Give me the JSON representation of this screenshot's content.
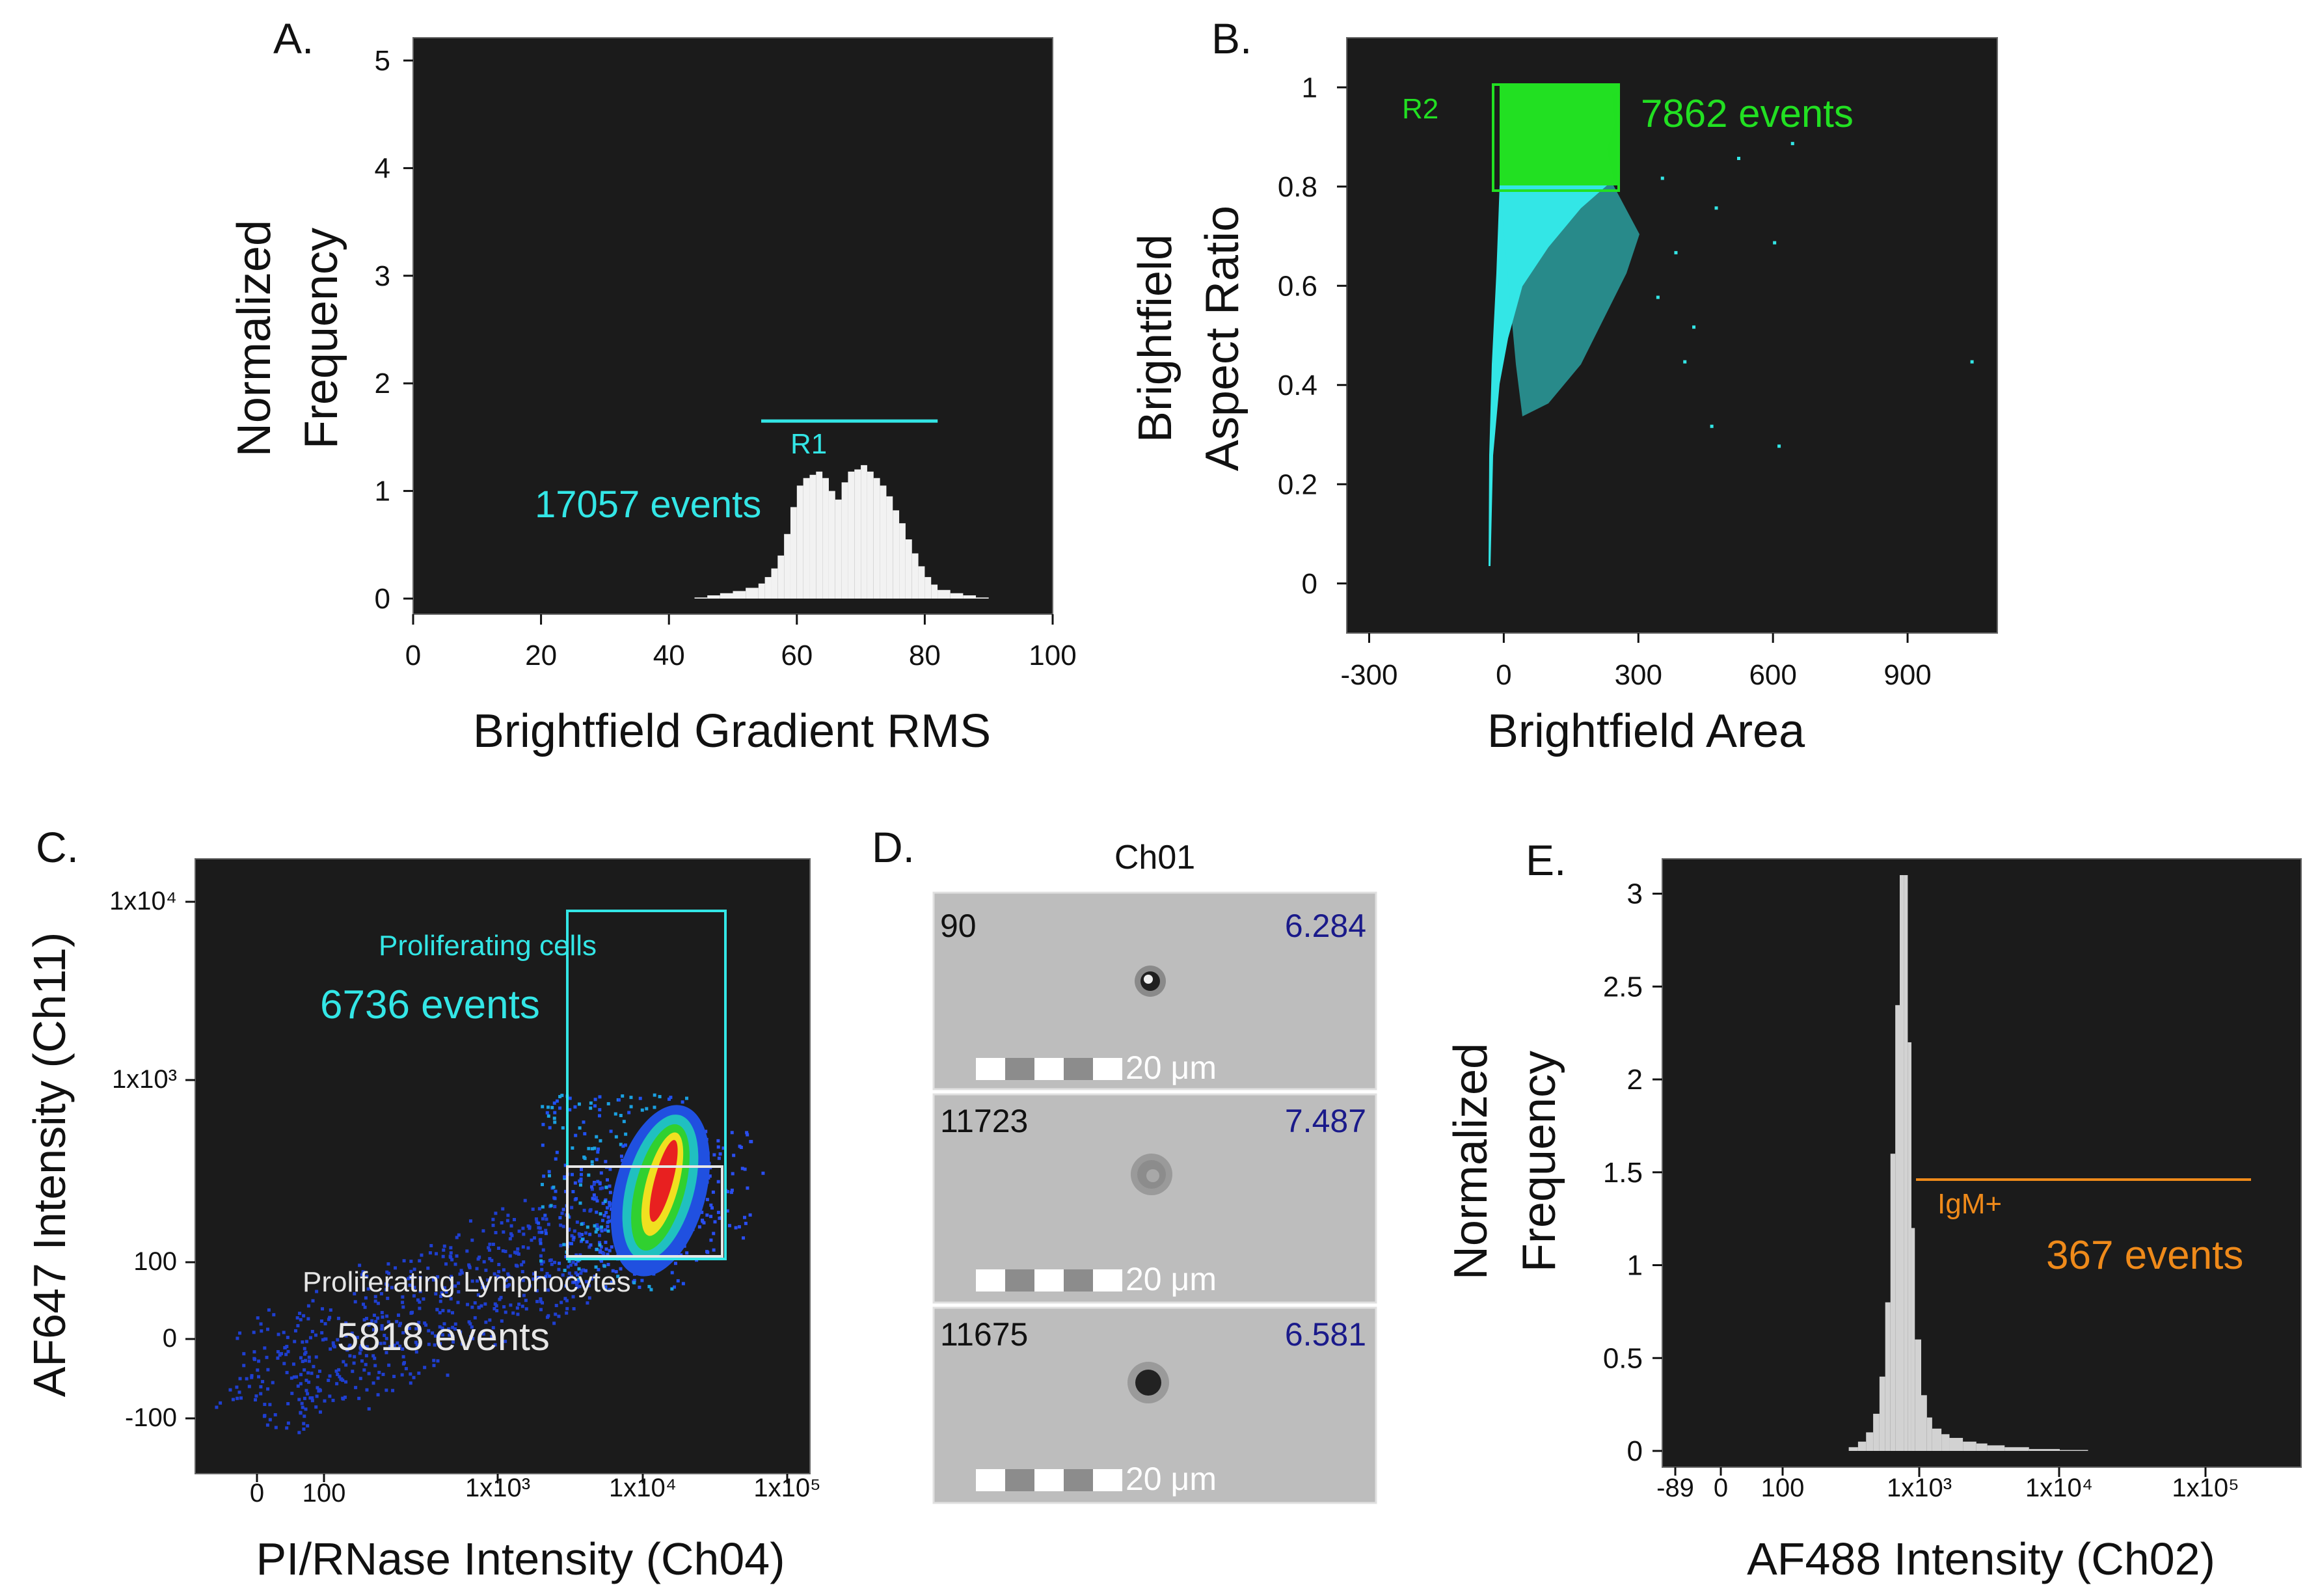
{
  "colors": {
    "background": "#ffffff",
    "plot_bg": "#1b1b1b",
    "cyan": "#33e6e6",
    "green": "#22e022",
    "white": "#f2f2f2",
    "grey_hist": "#d2d2d2",
    "orange": "#ef8a1a",
    "navy": "#1a1a8a",
    "text": "#111111"
  },
  "chart_data": [
    {
      "panel": "A.",
      "type": "bar",
      "title": "",
      "xlabel": "Brightfield Gradient RMS",
      "ylabel_lines": [
        "Normalized",
        "Frequency"
      ],
      "xlim": [
        0,
        100
      ],
      "ylim": [
        0,
        5
      ],
      "xticks": [
        "0",
        "20",
        "40",
        "60",
        "80",
        "100"
      ],
      "yticks": [
        "0",
        "1",
        "2",
        "3",
        "4",
        "5"
      ],
      "histogram": {
        "x": [
          44,
          46,
          48,
          50,
          52,
          54,
          55,
          56,
          57,
          58,
          59,
          60,
          61,
          62,
          63,
          64,
          65,
          66,
          67,
          68,
          69,
          70,
          71,
          72,
          73,
          74,
          75,
          76,
          77,
          78,
          79,
          80,
          81,
          82,
          84,
          86,
          88,
          90
        ],
        "y": [
          0.01,
          0.03,
          0.05,
          0.07,
          0.1,
          0.14,
          0.2,
          0.28,
          0.4,
          0.6,
          0.85,
          1.05,
          1.12,
          1.15,
          1.18,
          1.12,
          1.0,
          0.92,
          1.08,
          1.18,
          1.2,
          1.24,
          1.18,
          1.12,
          1.05,
          0.95,
          0.82,
          0.7,
          0.55,
          0.42,
          0.3,
          0.2,
          0.13,
          0.08,
          0.05,
          0.03,
          0.01,
          0.0
        ]
      },
      "gate": {
        "name": "R1",
        "x_range": [
          59,
          81
        ],
        "y": 1.65,
        "events_label": "17057 events"
      }
    },
    {
      "panel": "B.",
      "type": "scatter",
      "title": "",
      "xlabel": "Brightfield Area",
      "ylabel_lines": [
        "Brightfield",
        "Aspect Ratio"
      ],
      "xlim": [
        -350,
        1100
      ],
      "ylim": [
        -0.1,
        1.1
      ],
      "xticks": [
        "-300",
        "0",
        "300",
        "600",
        "900"
      ],
      "yticks": [
        "0",
        "0.2",
        "0.4",
        "0.6",
        "0.8",
        "1"
      ],
      "outlier_points": [
        [
          520,
          0.86
        ],
        [
          600,
          0.69
        ],
        [
          640,
          0.89
        ],
        [
          1040,
          0.45
        ],
        [
          610,
          0.28
        ],
        [
          460,
          0.32
        ],
        [
          400,
          0.45
        ],
        [
          340,
          0.58
        ],
        [
          470,
          0.76
        ],
        [
          350,
          0.82
        ],
        [
          420,
          0.52
        ],
        [
          380,
          0.67
        ]
      ],
      "gate": {
        "name": "R2",
        "x_range": [
          15,
          285
        ],
        "y_range": [
          0.79,
          1.0
        ],
        "events_label": "7862 events"
      }
    },
    {
      "panel": "C.",
      "type": "scatter",
      "title": "",
      "xlabel": "PI/RNase Intensity (Ch04)",
      "ylabel": "AF647 Intensity (Ch11)",
      "xscale": "logicle",
      "yscale": "logicle",
      "xticks": [
        "0",
        "100",
        "1x10³",
        "1x10⁴",
        "1x10⁵"
      ],
      "yticks": [
        "-100",
        "0",
        "100",
        "1x10³",
        "1x10⁴"
      ],
      "density_peak": {
        "x": "1.5x10⁴",
        "y": "220"
      },
      "gates": [
        {
          "name": "Proliferating cells",
          "events_label": "6736 events"
        },
        {
          "name": "Proliferating Lymphocytes",
          "events_label": "5818 events"
        }
      ]
    },
    {
      "panel": "D.",
      "type": "table",
      "title": "Ch01",
      "scale_label": "20 μm",
      "cells": [
        {
          "id": "90",
          "value": "6.284"
        },
        {
          "id": "11723",
          "value": "7.487"
        },
        {
          "id": "11675",
          "value": "6.581"
        }
      ]
    },
    {
      "panel": "E.",
      "type": "bar",
      "title": "",
      "xlabel": "AF488 Intensity (Ch02)",
      "ylabel_lines": [
        "Normalized",
        "Frequency"
      ],
      "xscale": "logicle",
      "ylim": [
        0,
        3.1
      ],
      "xticks": [
        "-89",
        "0",
        "100",
        "1x10³",
        "1x10⁴",
        "1x10⁵"
      ],
      "yticks": [
        "0",
        "0.5",
        "1",
        "1.5",
        "2",
        "2.5",
        "3"
      ],
      "histogram": {
        "x": [
          300,
          350,
          400,
          450,
          500,
          550,
          600,
          650,
          700,
          750,
          800,
          850,
          900,
          1000,
          1100,
          1200,
          1400,
          1600,
          2000,
          2500,
          3000,
          4000,
          6000,
          10000
        ],
        "y": [
          0.02,
          0.05,
          0.1,
          0.2,
          0.4,
          0.8,
          1.6,
          2.4,
          3.1,
          3.1,
          2.2,
          1.2,
          0.6,
          0.3,
          0.18,
          0.12,
          0.09,
          0.07,
          0.05,
          0.04,
          0.03,
          0.02,
          0.01,
          0.005
        ]
      },
      "gate": {
        "name": "IgM+",
        "x_range": [
          "1x10³",
          "2.5x10⁵"
        ],
        "y": 1.45,
        "events_label": "367 events"
      }
    }
  ]
}
